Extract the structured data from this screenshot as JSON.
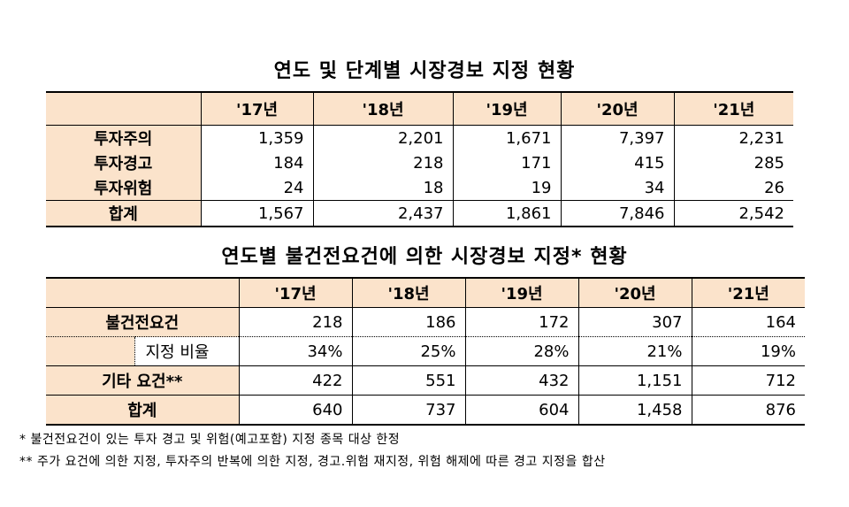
{
  "table1": {
    "title": "연도 및 단계별 시장경보 지정 현황",
    "years": [
      "'17년",
      "'18년",
      "'19년",
      "'20년",
      "'21년"
    ],
    "rows": [
      {
        "label": "투자주의",
        "values": [
          "1,359",
          "2,201",
          "1,671",
          "7,397",
          "2,231"
        ]
      },
      {
        "label": "투자경고",
        "values": [
          "184",
          "218",
          "171",
          "415",
          "285"
        ]
      },
      {
        "label": "투자위험",
        "values": [
          "24",
          "18",
          "19",
          "34",
          "26"
        ]
      },
      {
        "label": "합계",
        "values": [
          "1,567",
          "2,437",
          "1,861",
          "7,846",
          "2,542"
        ]
      }
    ]
  },
  "table2": {
    "title": "연도별 불건전요건에 의한 시장경보 지정* 현황",
    "years": [
      "'17년",
      "'18년",
      "'19년",
      "'20년",
      "'21년"
    ],
    "rows": [
      {
        "label": "불건전요건",
        "values": [
          "218",
          "186",
          "172",
          "307",
          "164"
        ]
      },
      {
        "label": "지정 비율",
        "values": [
          "34%",
          "25%",
          "28%",
          "21%",
          "19%"
        ]
      },
      {
        "label": "기타 요건**",
        "values": [
          "422",
          "551",
          "432",
          "1,151",
          "712"
        ]
      },
      {
        "label": "합계",
        "values": [
          "640",
          "737",
          "604",
          "1,458",
          "876"
        ]
      }
    ]
  },
  "notes": [
    "* 불건전요건이 있는 투자 경고 및 위험(예고포함) 지정 종목 대상 한정",
    "** 주가 요건에 의한 지정, 투자주의 반복에 의한 지정, 경고.위험 재지정, 위험 해제에 따른 경고 지정을 합산"
  ]
}
